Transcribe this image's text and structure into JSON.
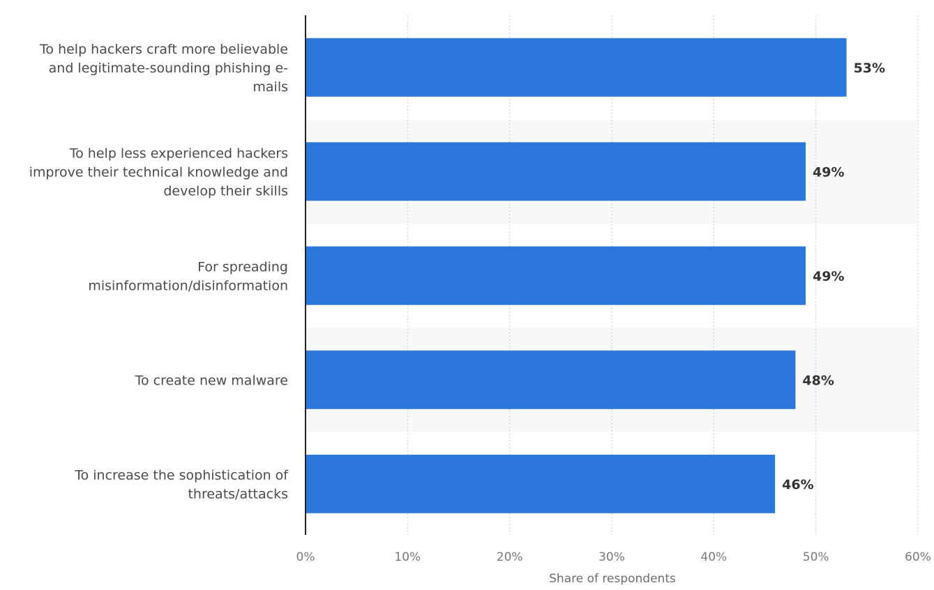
{
  "chart_data": {
    "type": "bar",
    "orientation": "horizontal",
    "categories": [
      "To help hackers craft more believable and legitimate-sounding phishing e-mails",
      "To help less experienced hackers improve their technical knowledge and develop their skills",
      "For spreading misinformation/disinformation",
      "To create new malware",
      "To increase the sophistication of threats/attacks"
    ],
    "category_lines": [
      [
        "To help hackers craft more believable",
        "and legitimate-sounding phishing e-",
        "mails"
      ],
      [
        "To help less experienced hackers",
        "improve their technical knowledge and",
        "develop their skills"
      ],
      [
        "For spreading",
        "misinformation/disinformation"
      ],
      [
        "To create new malware"
      ],
      [
        "To increase the sophistication of",
        "threats/attacks"
      ]
    ],
    "values": [
      53,
      49,
      49,
      48,
      46
    ],
    "value_labels": [
      "53%",
      "49%",
      "49%",
      "48%",
      "46%"
    ],
    "xlim": [
      0,
      60
    ],
    "ticks": [
      0,
      10,
      20,
      30,
      40,
      50,
      60
    ],
    "tick_labels": [
      "0%",
      "10%",
      "20%",
      "30%",
      "40%",
      "50%",
      "60%"
    ],
    "xlabel": "Share of respondents",
    "ylabel": "",
    "title": "",
    "grid": "vertical dotted",
    "legend": "none",
    "colors": {
      "bar": "#2a76dd",
      "band": "#f8f8f8",
      "grid": "#c8c8c8",
      "axis": "#222222"
    }
  }
}
